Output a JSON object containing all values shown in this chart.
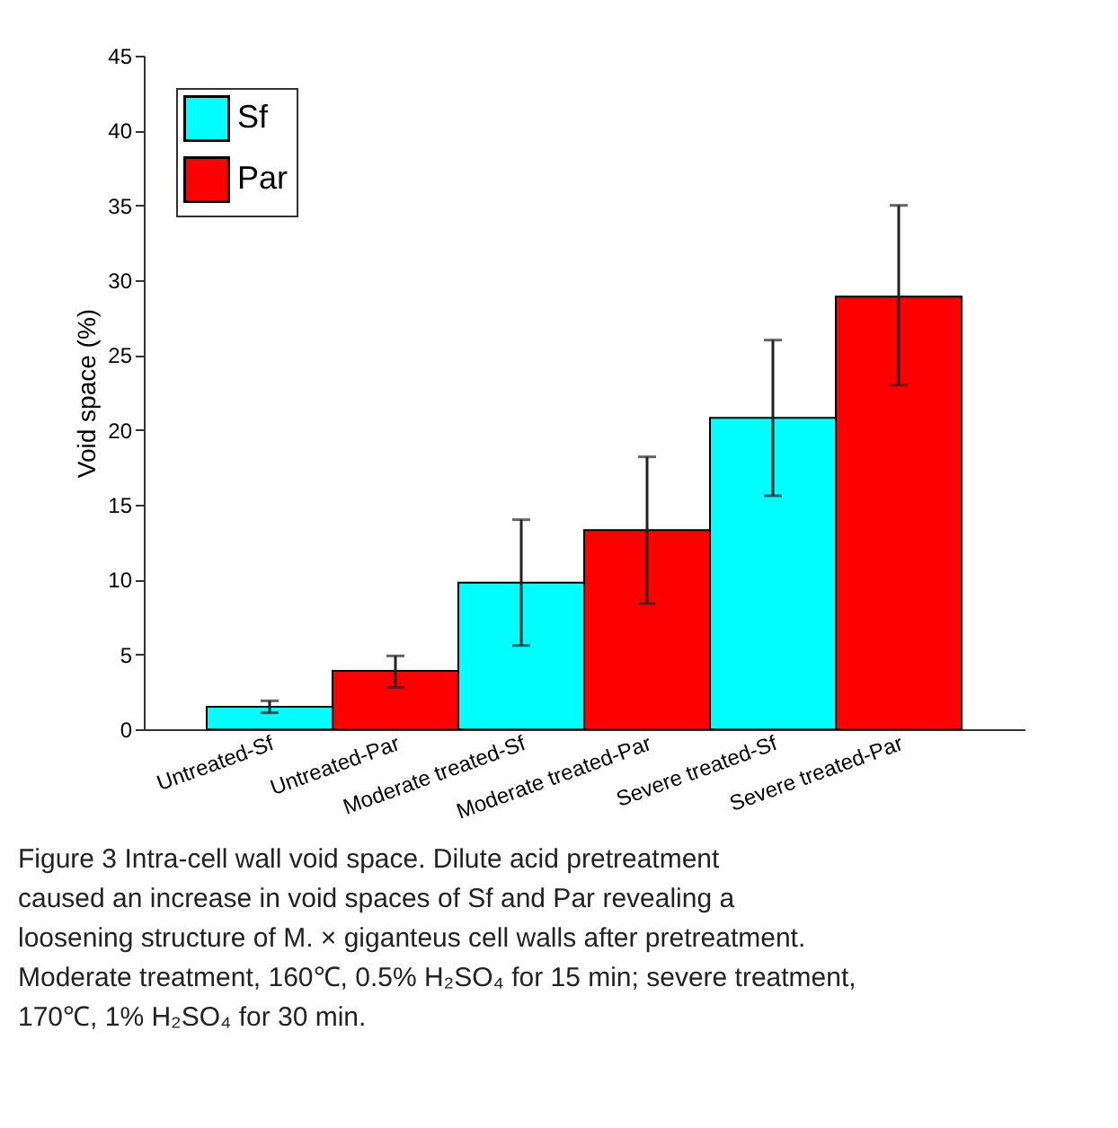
{
  "chart_data": {
    "type": "bar",
    "ylabel": "Void space (%)",
    "categories": [
      "Untreated-Sf",
      "Untreated-Par",
      "Moderate treated-Sf",
      "Moderate treated-Par",
      "Severe treated-Sf",
      "Severe treated-Par"
    ],
    "series": [
      {
        "name": "Sf",
        "color": "#00ffff",
        "values": [
          1.5,
          null,
          9.8,
          null,
          20.8,
          null
        ],
        "errors": [
          [
            1.1,
            1.9
          ],
          null,
          [
            5.6,
            14.0
          ],
          null,
          [
            15.6,
            26.0
          ],
          null
        ]
      },
      {
        "name": "Par",
        "color": "#ff0000",
        "values": [
          null,
          3.9,
          null,
          13.3,
          null,
          28.9
        ],
        "errors": [
          null,
          [
            2.8,
            4.9
          ],
          null,
          [
            8.4,
            18.2
          ],
          null,
          [
            23.0,
            35.0
          ]
        ]
      }
    ],
    "ylim": [
      0,
      45
    ],
    "yticks": [
      0,
      5,
      10,
      15,
      20,
      25,
      30,
      35,
      40,
      45
    ],
    "grid": false,
    "legend": "top left",
    "annotations": [
      "Figure 3  Intra-cell wall void space. Dilute acid pretreatment caused an increase in void spaces of Sf and Par revealing a loosening structure of M. × giganteus cell walls after pretreatment. Moderate treatment, 160℃, 0.5% H₂SO₄ for 15 min; severe treatment, 170℃, 1% H₂SO₄ for 30 min."
    ]
  }
}
